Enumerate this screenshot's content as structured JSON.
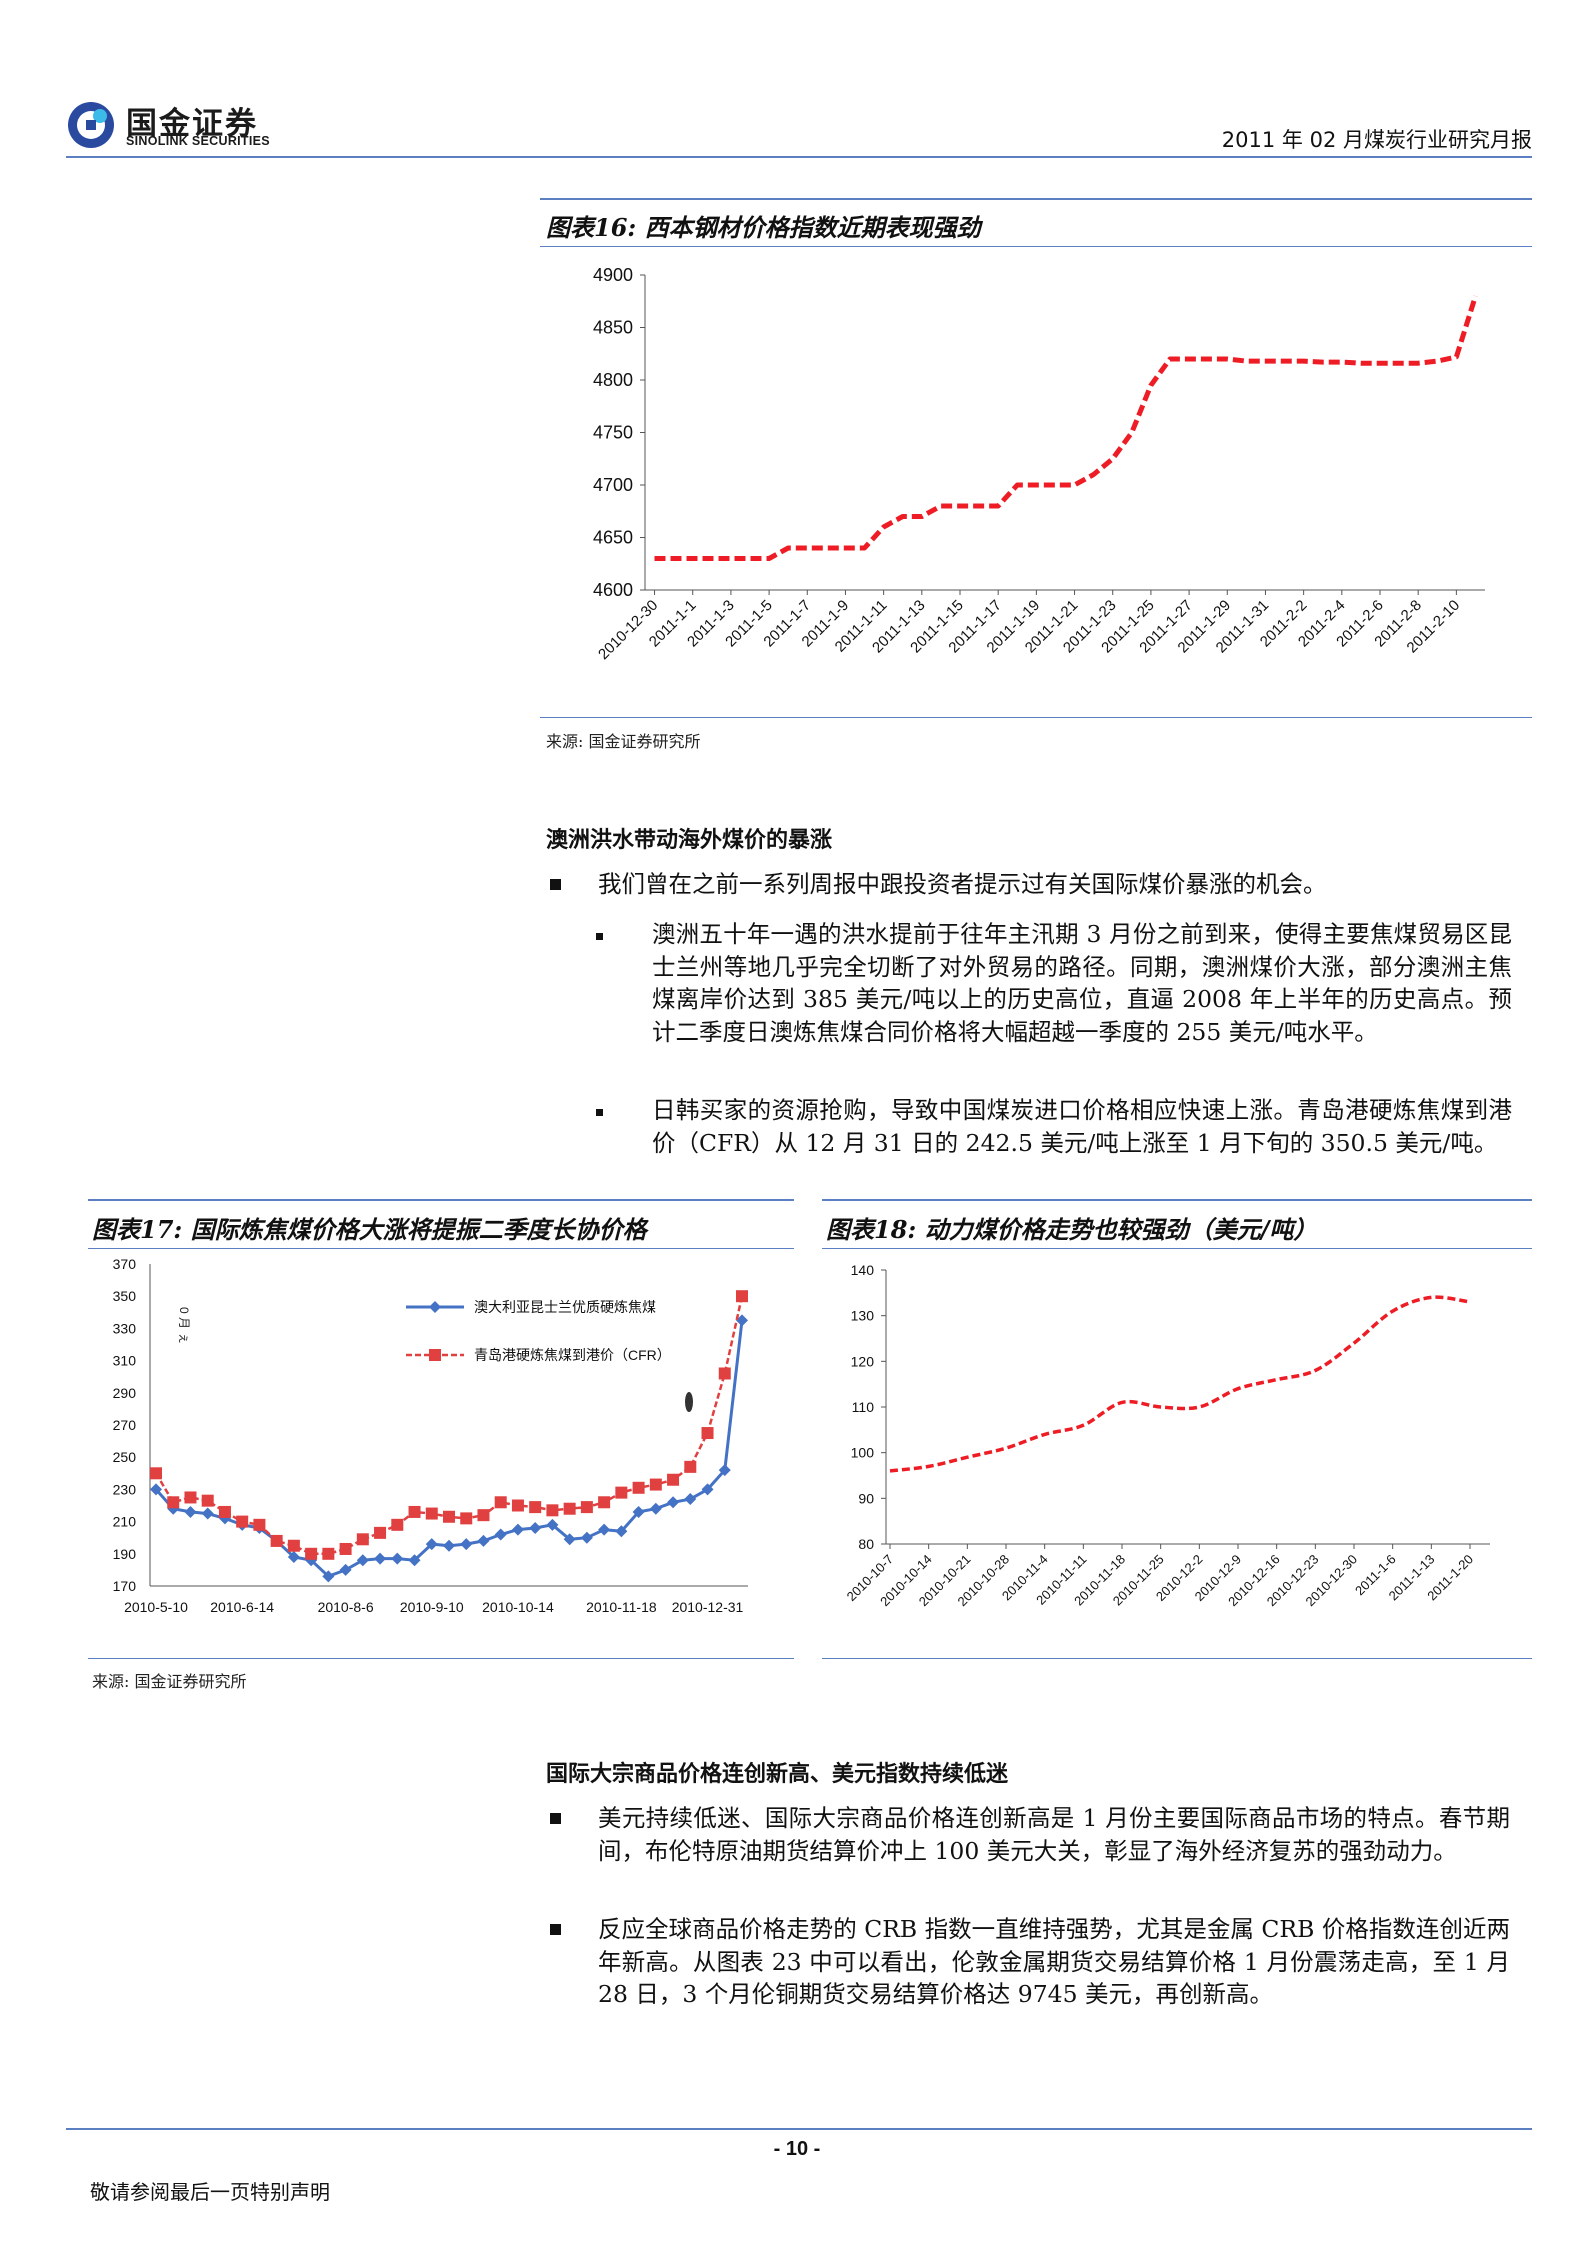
{
  "header": {
    "logo_cn": "国金证券",
    "logo_en": "SINOLINK SECURITIES",
    "report_title": "2011 年 02 月煤炭行业研究月报"
  },
  "fig16": {
    "title": "图表16:  西本钢材价格指数近期表现强劲",
    "source": "来源:  国金证券研究所",
    "chart_data": {
      "type": "line",
      "ylim": [
        4600,
        4900
      ],
      "yticks": [
        4600,
        4650,
        4700,
        4750,
        4800,
        4850,
        4900
      ],
      "xticks": [
        "2010-12-30",
        "2011-1-1",
        "2011-1-3",
        "2011-1-5",
        "2011-1-7",
        "2011-1-9",
        "2011-1-11",
        "2011-1-13",
        "2011-1-15",
        "2011-1-17",
        "2011-1-19",
        "2011-1-21",
        "2011-1-23",
        "2011-1-25",
        "2011-1-27",
        "2011-1-29",
        "2011-1-31",
        "2011-2-2",
        "2011-2-4",
        "2011-2-6",
        "2011-2-8",
        "2011-2-10"
      ],
      "x": [
        "2010-12-30",
        "2010-12-31",
        "2011-1-1",
        "2011-1-2",
        "2011-1-3",
        "2011-1-4",
        "2011-1-5",
        "2011-1-6",
        "2011-1-7",
        "2011-1-8",
        "2011-1-9",
        "2011-1-10",
        "2011-1-11",
        "2011-1-12",
        "2011-1-13",
        "2011-1-14",
        "2011-1-15",
        "2011-1-16",
        "2011-1-17",
        "2011-1-18",
        "2011-1-19",
        "2011-1-20",
        "2011-1-21",
        "2011-1-22",
        "2011-1-23",
        "2011-1-24",
        "2011-1-25",
        "2011-1-26",
        "2011-1-27",
        "2011-1-28",
        "2011-1-29",
        "2011-1-30",
        "2011-1-31",
        "2011-2-1",
        "2011-2-2",
        "2011-2-3",
        "2011-2-4",
        "2011-2-5",
        "2011-2-6",
        "2011-2-7",
        "2011-2-8",
        "2011-2-9",
        "2011-2-10",
        "2011-2-11"
      ],
      "values": [
        4630,
        4630,
        4630,
        4630,
        4630,
        4630,
        4630,
        4640,
        4640,
        4640,
        4640,
        4640,
        4660,
        4670,
        4670,
        4680,
        4680,
        4680,
        4680,
        4700,
        4700,
        4700,
        4700,
        4710,
        4725,
        4750,
        4795,
        4820,
        4820,
        4820,
        4820,
        4818,
        4818,
        4818,
        4818,
        4817,
        4817,
        4816,
        4816,
        4816,
        4816,
        4818,
        4822,
        4880
      ],
      "color": "#ee1c24"
    }
  },
  "section1": {
    "heading": "澳洲洪水带动海外煤价的暴涨",
    "bullet": "我们曾在之前一系列周报中跟投资者提示过有关国际煤价暴涨的机会。",
    "sub1": "澳洲五十年一遇的洪水提前于往年主汛期 3 月份之前到来，使得主要焦煤贸易区昆士兰州等地几乎完全切断了对外贸易的路径。同期，澳洲煤价大涨，部分澳洲主焦煤离岸价达到 385 美元/吨以上的历史高位，直逼 2008 年上半年的历史高点。预计二季度日澳炼焦煤合同价格将大幅超越一季度的 255 美元/吨水平。",
    "sub2": "日韩买家的资源抢购，导致中国煤炭进口价格相应快速上涨。青岛港硬炼焦煤到港价（CFR）从 12 月 31 日的 242.5 美元/吨上涨至 1 月下旬的 350.5 美元/吨。"
  },
  "fig17": {
    "title": "图表17:  国际炼焦煤价格大涨将提振二季度长协价格",
    "chart_data": {
      "type": "line",
      "ylim": [
        170,
        370
      ],
      "yticks": [
        170,
        190,
        210,
        230,
        250,
        270,
        290,
        310,
        330,
        350,
        370
      ],
      "xticks": [
        "2010-5-10",
        "2010-6-14",
        "2010-8-6",
        "2010-9-10",
        "2010-10-14",
        "2010-11-18",
        "2010-12-31"
      ],
      "series": [
        {
          "name": "澳大利亚昆士兰优质硬炼焦煤",
          "color": "#4472c4",
          "values": [
            230,
            218,
            216,
            215,
            212,
            208,
            206,
            198,
            188,
            186,
            176,
            180,
            186,
            187,
            187,
            186,
            196,
            195,
            196,
            198,
            202,
            205,
            206,
            208,
            199,
            200,
            205,
            204,
            216,
            218,
            222,
            224,
            230,
            242,
            335
          ]
        },
        {
          "name": "青岛港硬炼焦煤到港价（CFR）",
          "color": "#e04040",
          "values": [
            240,
            222,
            225,
            223,
            216,
            210,
            208,
            198,
            195,
            190,
            190,
            193,
            199,
            203,
            208,
            216,
            215,
            213,
            212,
            214,
            222,
            220,
            219,
            217,
            218,
            219,
            222,
            228,
            231,
            233,
            236,
            244,
            265,
            302,
            350
          ]
        }
      ],
      "annotation": "0 月 ぇ"
    }
  },
  "fig18": {
    "title": "图表18:  动力煤价格走势也较强劲（美元/吨）",
    "chart_data": {
      "type": "line",
      "ylim": [
        80,
        140
      ],
      "yticks": [
        80,
        90,
        100,
        110,
        120,
        130,
        140
      ],
      "xticks": [
        "2010-10-7",
        "2010-10-14",
        "2010-10-21",
        "2010-10-28",
        "2010-11-4",
        "2010-11-11",
        "2010-11-18",
        "2010-11-25",
        "2010-12-2",
        "2010-12-9",
        "2010-12-16",
        "2010-12-23",
        "2010-12-30",
        "2011-1-6",
        "2011-1-13",
        "2011-1-20"
      ],
      "values": [
        96,
        97,
        99,
        101,
        104,
        106,
        111,
        110,
        110,
        114,
        116,
        118,
        124,
        131,
        134,
        133
      ],
      "color": "#ee1c24"
    }
  },
  "source2": "来源:  国金证券研究所",
  "section2": {
    "heading": "国际大宗商品价格连创新高、美元指数持续低迷",
    "b1": "美元持续低迷、国际大宗商品价格连创新高是 1 月份主要国际商品市场的特点。春节期间，布伦特原油期货结算价冲上 100 美元大关，彰显了海外经济复苏的强劲动力。",
    "b2": "反应全球商品价格走势的 CRB 指数一直维持强势，尤其是金属 CRB 价格指数连创近两年新高。从图表 23 中可以看出，伦敦金属期货交易结算价格 1 月份震荡走高，至 1 月 28 日，3 个月伦铜期货交易结算价格达 9745 美元，再创新高。"
  },
  "footer": {
    "page": "- 10 -",
    "note": "敬请参阅最后一页特别声明"
  }
}
